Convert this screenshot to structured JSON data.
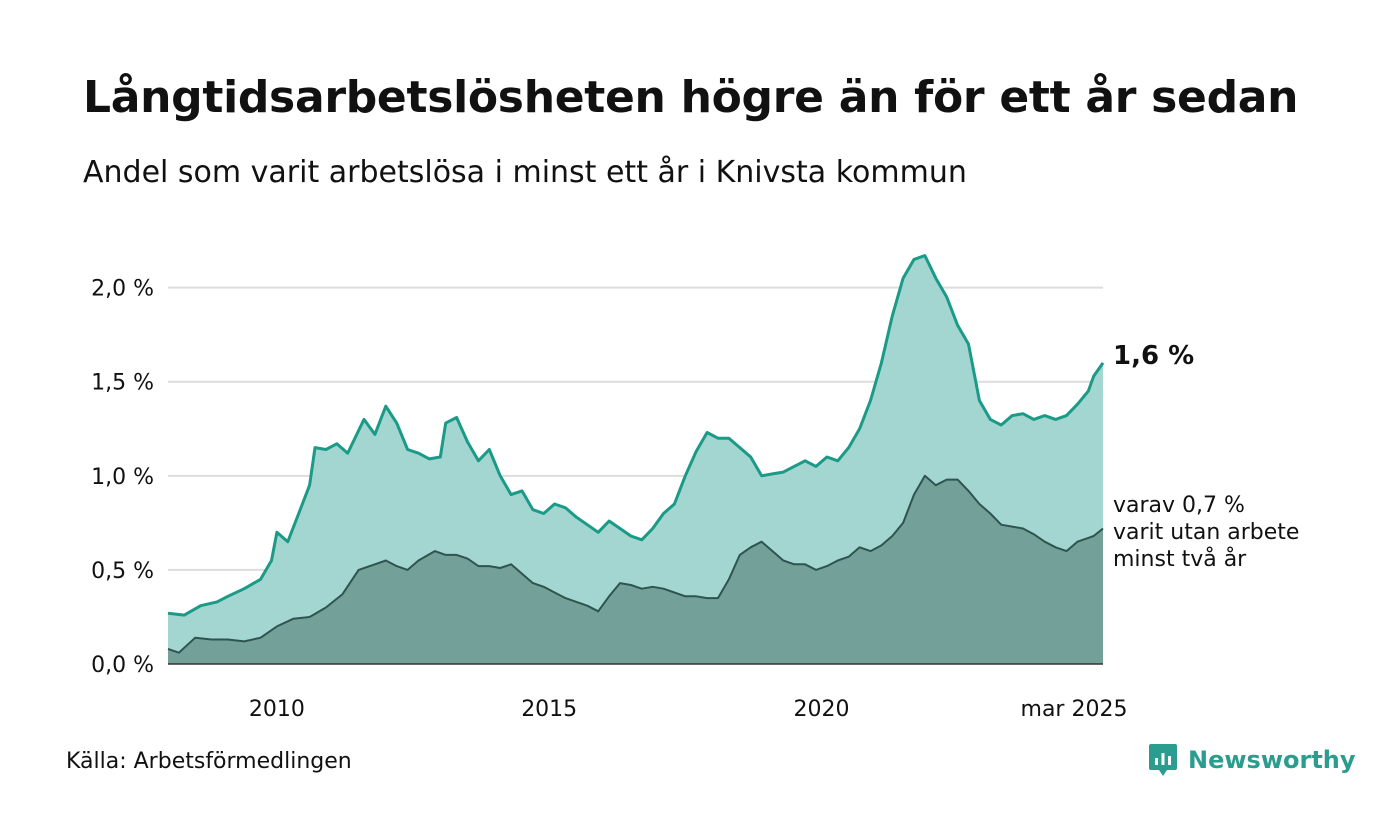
{
  "title": "Långtidsarbetslösheten högre än för ett år sedan",
  "subtitle": "Andel som varit arbetslösa i minst ett år i Knivsta kommun",
  "source": "Källa: Arbetsförmedlingen",
  "brand": "Newsworthy",
  "colors": {
    "upper_line": "#1a9a87",
    "upper_fill": "#a3d6d0",
    "lower_line": "#2f5450",
    "lower_fill": "#73a19a",
    "grid": "#dddddd",
    "text": "#111111",
    "brand": "#2a9d8f"
  },
  "chart_data": {
    "type": "area",
    "x_tick_labels": [
      "2010",
      "2015",
      "2020",
      "mar 2025"
    ],
    "x_ticks": [
      2010.0,
      2015.0,
      2020.0,
      2025.17
    ],
    "xlim": [
      2008.0,
      2025.17
    ],
    "y_tick_labels": [
      "0,0 %",
      "0,5 %",
      "1,0 %",
      "1,5 %",
      "2,0 %"
    ],
    "y_ticks": [
      0.0,
      0.5,
      1.0,
      1.5,
      2.0
    ],
    "ylim": [
      0,
      2.2
    ],
    "grid": true,
    "end_labels": {
      "total": "1,6 %",
      "lower": [
        "varav 0,7 %",
        "varit utan arbete",
        "minst två år"
      ]
    },
    "series": [
      {
        "key": "total",
        "points": [
          [
            2008.0,
            0.27
          ],
          [
            2008.3,
            0.26
          ],
          [
            2008.6,
            0.31
          ],
          [
            2008.9,
            0.33
          ],
          [
            2009.1,
            0.36
          ],
          [
            2009.4,
            0.4
          ],
          [
            2009.7,
            0.45
          ],
          [
            2009.9,
            0.55
          ],
          [
            2010.0,
            0.7
          ],
          [
            2010.2,
            0.65
          ],
          [
            2010.4,
            0.8
          ],
          [
            2010.6,
            0.95
          ],
          [
            2010.7,
            1.15
          ],
          [
            2010.9,
            1.14
          ],
          [
            2011.1,
            1.17
          ],
          [
            2011.3,
            1.12
          ],
          [
            2011.6,
            1.3
          ],
          [
            2011.8,
            1.22
          ],
          [
            2012.0,
            1.37
          ],
          [
            2012.2,
            1.28
          ],
          [
            2012.4,
            1.14
          ],
          [
            2012.6,
            1.12
          ],
          [
            2012.8,
            1.09
          ],
          [
            2013.0,
            1.1
          ],
          [
            2013.1,
            1.28
          ],
          [
            2013.3,
            1.31
          ],
          [
            2013.5,
            1.18
          ],
          [
            2013.7,
            1.08
          ],
          [
            2013.9,
            1.14
          ],
          [
            2014.1,
            1.0
          ],
          [
            2014.3,
            0.9
          ],
          [
            2014.5,
            0.92
          ],
          [
            2014.7,
            0.82
          ],
          [
            2014.9,
            0.8
          ],
          [
            2015.1,
            0.85
          ],
          [
            2015.3,
            0.83
          ],
          [
            2015.5,
            0.78
          ],
          [
            2015.7,
            0.74
          ],
          [
            2015.9,
            0.7
          ],
          [
            2016.1,
            0.76
          ],
          [
            2016.3,
            0.72
          ],
          [
            2016.5,
            0.68
          ],
          [
            2016.7,
            0.66
          ],
          [
            2016.9,
            0.72
          ],
          [
            2017.1,
            0.8
          ],
          [
            2017.3,
            0.85
          ],
          [
            2017.5,
            1.0
          ],
          [
            2017.7,
            1.13
          ],
          [
            2017.9,
            1.23
          ],
          [
            2018.1,
            1.2
          ],
          [
            2018.3,
            1.2
          ],
          [
            2018.5,
            1.15
          ],
          [
            2018.7,
            1.1
          ],
          [
            2018.9,
            1.0
          ],
          [
            2019.1,
            1.01
          ],
          [
            2019.3,
            1.02
          ],
          [
            2019.5,
            1.05
          ],
          [
            2019.7,
            1.08
          ],
          [
            2019.9,
            1.05
          ],
          [
            2020.1,
            1.1
          ],
          [
            2020.3,
            1.08
          ],
          [
            2020.5,
            1.15
          ],
          [
            2020.7,
            1.25
          ],
          [
            2020.9,
            1.4
          ],
          [
            2021.1,
            1.6
          ],
          [
            2021.3,
            1.85
          ],
          [
            2021.5,
            2.05
          ],
          [
            2021.7,
            2.15
          ],
          [
            2021.9,
            2.17
          ],
          [
            2022.1,
            2.05
          ],
          [
            2022.3,
            1.95
          ],
          [
            2022.5,
            1.8
          ],
          [
            2022.7,
            1.7
          ],
          [
            2022.9,
            1.4
          ],
          [
            2023.1,
            1.3
          ],
          [
            2023.3,
            1.27
          ],
          [
            2023.5,
            1.32
          ],
          [
            2023.7,
            1.33
          ],
          [
            2023.9,
            1.3
          ],
          [
            2024.1,
            1.32
          ],
          [
            2024.3,
            1.3
          ],
          [
            2024.5,
            1.32
          ],
          [
            2024.7,
            1.38
          ],
          [
            2024.9,
            1.45
          ],
          [
            2025.0,
            1.53
          ],
          [
            2025.17,
            1.6
          ]
        ]
      },
      {
        "key": "lower",
        "points": [
          [
            2008.0,
            0.08
          ],
          [
            2008.2,
            0.06
          ],
          [
            2008.5,
            0.14
          ],
          [
            2008.8,
            0.13
          ],
          [
            2009.1,
            0.13
          ],
          [
            2009.4,
            0.12
          ],
          [
            2009.7,
            0.14
          ],
          [
            2010.0,
            0.2
          ],
          [
            2010.3,
            0.24
          ],
          [
            2010.6,
            0.25
          ],
          [
            2010.9,
            0.3
          ],
          [
            2011.2,
            0.37
          ],
          [
            2011.5,
            0.5
          ],
          [
            2011.8,
            0.53
          ],
          [
            2012.0,
            0.55
          ],
          [
            2012.2,
            0.52
          ],
          [
            2012.4,
            0.5
          ],
          [
            2012.6,
            0.55
          ],
          [
            2012.9,
            0.6
          ],
          [
            2013.1,
            0.58
          ],
          [
            2013.3,
            0.58
          ],
          [
            2013.5,
            0.56
          ],
          [
            2013.7,
            0.52
          ],
          [
            2013.9,
            0.52
          ],
          [
            2014.1,
            0.51
          ],
          [
            2014.3,
            0.53
          ],
          [
            2014.5,
            0.48
          ],
          [
            2014.7,
            0.43
          ],
          [
            2014.9,
            0.41
          ],
          [
            2015.1,
            0.38
          ],
          [
            2015.3,
            0.35
          ],
          [
            2015.5,
            0.33
          ],
          [
            2015.7,
            0.31
          ],
          [
            2015.9,
            0.28
          ],
          [
            2016.1,
            0.36
          ],
          [
            2016.3,
            0.43
          ],
          [
            2016.5,
            0.42
          ],
          [
            2016.7,
            0.4
          ],
          [
            2016.9,
            0.41
          ],
          [
            2017.1,
            0.4
          ],
          [
            2017.3,
            0.38
          ],
          [
            2017.5,
            0.36
          ],
          [
            2017.7,
            0.36
          ],
          [
            2017.9,
            0.35
          ],
          [
            2018.1,
            0.35
          ],
          [
            2018.3,
            0.45
          ],
          [
            2018.5,
            0.58
          ],
          [
            2018.7,
            0.62
          ],
          [
            2018.9,
            0.65
          ],
          [
            2019.1,
            0.6
          ],
          [
            2019.3,
            0.55
          ],
          [
            2019.5,
            0.53
          ],
          [
            2019.7,
            0.53
          ],
          [
            2019.9,
            0.5
          ],
          [
            2020.1,
            0.52
          ],
          [
            2020.3,
            0.55
          ],
          [
            2020.5,
            0.57
          ],
          [
            2020.7,
            0.62
          ],
          [
            2020.9,
            0.6
          ],
          [
            2021.1,
            0.63
          ],
          [
            2021.3,
            0.68
          ],
          [
            2021.5,
            0.75
          ],
          [
            2021.7,
            0.9
          ],
          [
            2021.9,
            1.0
          ],
          [
            2022.1,
            0.95
          ],
          [
            2022.3,
            0.98
          ],
          [
            2022.5,
            0.98
          ],
          [
            2022.7,
            0.92
          ],
          [
            2022.9,
            0.85
          ],
          [
            2023.1,
            0.8
          ],
          [
            2023.3,
            0.74
          ],
          [
            2023.5,
            0.73
          ],
          [
            2023.7,
            0.72
          ],
          [
            2023.9,
            0.69
          ],
          [
            2024.1,
            0.65
          ],
          [
            2024.3,
            0.62
          ],
          [
            2024.5,
            0.6
          ],
          [
            2024.7,
            0.65
          ],
          [
            2024.9,
            0.67
          ],
          [
            2025.0,
            0.68
          ],
          [
            2025.17,
            0.72
          ]
        ]
      }
    ]
  }
}
